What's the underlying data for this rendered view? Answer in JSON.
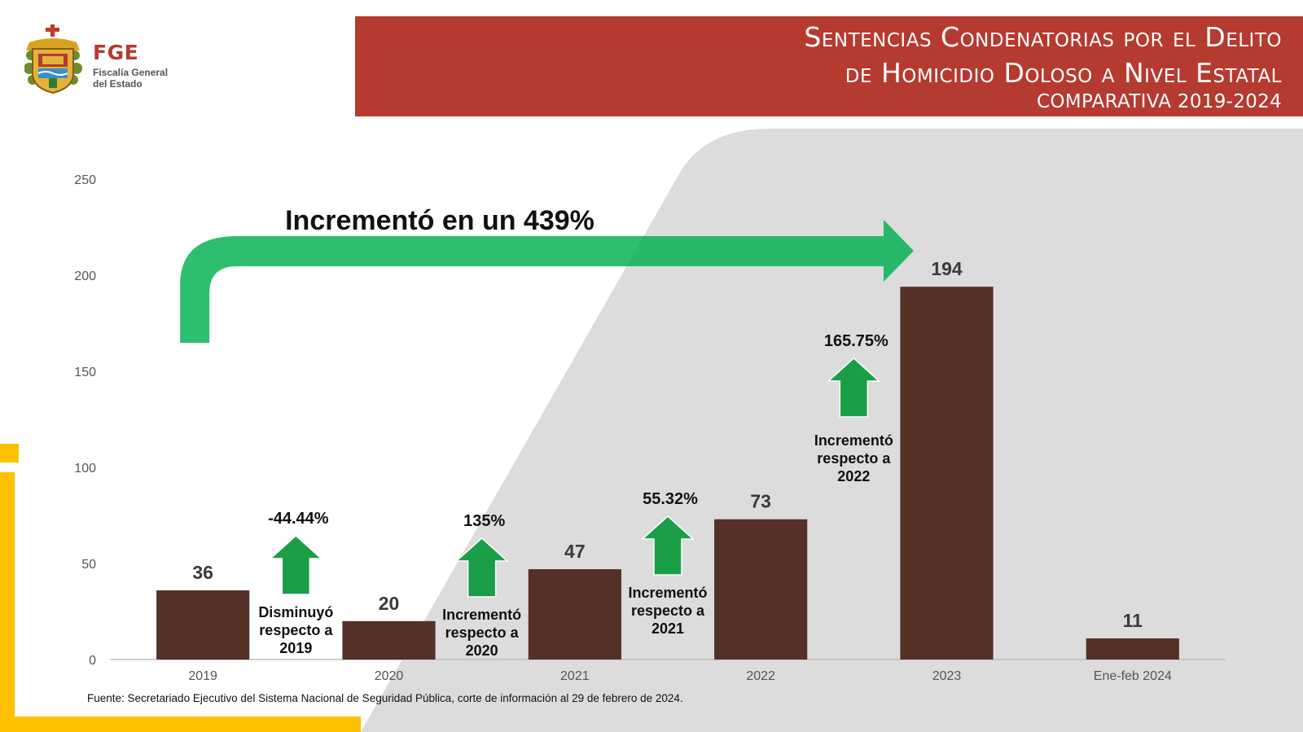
{
  "header": {
    "title_line1": "Sentencias Condenatorias por  el Delito",
    "title_line2": "de Homicidio Doloso a Nivel Estatal",
    "subtitle": "COMPARATIVA 2019-2024"
  },
  "logo": {
    "acronym": "FGE",
    "name_line1": "Fiscalía General",
    "name_line2": "del Estado"
  },
  "colors": {
    "banner": "#b53a30",
    "bar": "#553027",
    "arrow_green": "#1a9e48",
    "big_arrow_green": "#00b050",
    "accent_yellow": "#ffc000",
    "background_shape": "#dcdcdc"
  },
  "chart_data": {
    "type": "bar",
    "categories": [
      "2019",
      "2020",
      "2021",
      "2022",
      "2023",
      "Ene-feb 2024"
    ],
    "values": [
      36,
      20,
      47,
      73,
      194,
      11
    ],
    "data_labels": [
      "36",
      "20",
      "47",
      "73",
      "194",
      "11"
    ],
    "ylim": [
      0,
      250
    ],
    "yticks": [
      0,
      50,
      100,
      150,
      200,
      250
    ],
    "grid": false,
    "legend": "none",
    "title": "",
    "xlabel": "",
    "ylabel": "",
    "annotations": [
      {
        "between": [
          "2019",
          "2020"
        ],
        "percent": "-44.44%",
        "text": [
          "Disminuyó",
          "respecto a",
          "2019"
        ]
      },
      {
        "between": [
          "2020",
          "2021"
        ],
        "percent": "135%",
        "text": [
          "Incrementó",
          "respecto a",
          "2020"
        ]
      },
      {
        "between": [
          "2021",
          "2022"
        ],
        "percent": "55.32%",
        "text": [
          "Incrementó",
          "respecto a",
          "2021"
        ]
      },
      {
        "between": [
          "2022",
          "2023"
        ],
        "percent": "165.75%",
        "text": [
          "Incrementó",
          "respecto a",
          "2022"
        ]
      }
    ],
    "overall_annotation": {
      "from": "2019",
      "to": "2023",
      "text": "Incrementó en un 439%"
    }
  },
  "source": "Fuente: Secretariado Ejecutivo del Sistema Nacional de Seguridad Pública, corte de información al 29 de febrero de 2024."
}
